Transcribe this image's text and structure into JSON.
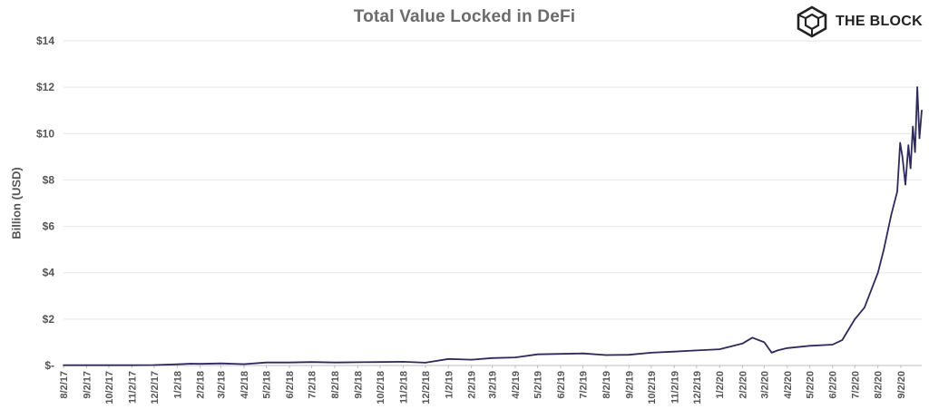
{
  "chart_data": {
    "type": "line",
    "title": "Total Value Locked in DeFi",
    "xlabel": "",
    "ylabel": "Billion (USD)",
    "ylim": [
      0,
      14
    ],
    "y_ticks": [
      0,
      2,
      4,
      6,
      8,
      10,
      12,
      14
    ],
    "y_tick_labels": [
      "$-",
      "$2",
      "$4",
      "$6",
      "$8",
      "$10",
      "$12",
      "$14"
    ],
    "x_tick_labels": [
      "8/2/17",
      "9/2/17",
      "10/2/17",
      "11/2/17",
      "12/2/17",
      "1/2/18",
      "2/2/18",
      "3/2/18",
      "4/2/18",
      "5/2/18",
      "6/2/18",
      "7/2/18",
      "8/2/18",
      "9/2/18",
      "10/2/18",
      "11/2/18",
      "12/2/18",
      "1/2/19",
      "2/2/19",
      "3/2/19",
      "4/2/19",
      "5/2/19",
      "6/2/19",
      "7/2/19",
      "8/2/19",
      "9/2/19",
      "10/2/19",
      "11/2/19",
      "12/2/19",
      "1/2/20",
      "2/2/20",
      "3/2/20",
      "4/2/20",
      "5/2/20",
      "6/2/20",
      "7/2/20",
      "8/2/20",
      "9/2/20"
    ],
    "grid": true,
    "line_color": "#2e2a5c",
    "series": [
      {
        "x": [
          "8/2/17",
          "9/2/17",
          "10/2/17",
          "11/2/17",
          "12/2/17",
          "1/2/18",
          "1/20/18",
          "2/2/18",
          "3/2/18",
          "4/2/18",
          "5/2/18",
          "6/2/18",
          "7/2/18",
          "8/2/18",
          "9/2/18",
          "10/2/18",
          "11/2/18",
          "12/2/18",
          "1/2/19",
          "2/2/19",
          "3/2/19",
          "4/2/19",
          "5/2/19",
          "6/2/19",
          "7/2/19",
          "8/2/19",
          "9/2/19",
          "10/2/19",
          "11/2/19",
          "12/2/19",
          "1/2/20",
          "2/2/20",
          "2/15/20",
          "3/2/20",
          "3/12/20",
          "3/20/20",
          "4/2/20",
          "5/2/20",
          "6/2/20",
          "6/15/20",
          "7/2/20",
          "7/15/20",
          "8/2/20",
          "8/10/20",
          "8/20/20",
          "8/28/20",
          "9/1/20",
          "9/4/20",
          "9/8/20",
          "9/12/20",
          "9/15/20",
          "9/18/20",
          "9/21/20",
          "9/24/20",
          "9/27/20",
          "9/30/20"
        ],
        "y": [
          0.01,
          0.01,
          0.01,
          0.01,
          0.02,
          0.05,
          0.08,
          0.07,
          0.09,
          0.06,
          0.13,
          0.13,
          0.15,
          0.13,
          0.14,
          0.15,
          0.16,
          0.12,
          0.28,
          0.25,
          0.32,
          0.35,
          0.48,
          0.5,
          0.52,
          0.45,
          0.46,
          0.55,
          0.6,
          0.65,
          0.7,
          0.95,
          1.2,
          1.0,
          0.55,
          0.65,
          0.75,
          0.85,
          0.9,
          1.1,
          2.0,
          2.5,
          4.0,
          5.0,
          6.5,
          7.5,
          9.6,
          9.0,
          7.8,
          9.5,
          8.5,
          10.3,
          9.2,
          12.0,
          9.8,
          11.0
        ]
      }
    ]
  },
  "brand": {
    "name": "THE BLOCK",
    "logo_icon": "cube-icon"
  }
}
